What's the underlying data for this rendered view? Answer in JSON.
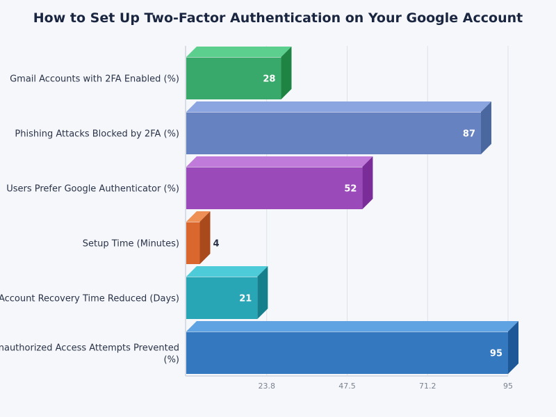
{
  "chart_data": {
    "type": "bar",
    "orientation": "horizontal",
    "style": "3d",
    "title": "How to Set Up Two-Factor Authentication on Your Google Account",
    "categories": [
      "Gmail Accounts with 2FA Enabled (%)",
      "Phishing Attacks Blocked by 2FA (%)",
      "Users Prefer Google Authenticator (%)",
      "Setup Time (Minutes)",
      "Account Recovery Time Reduced (Days)",
      "Unauthorized Access Attempts Prevented (%)"
    ],
    "values": [
      28,
      87,
      52,
      4,
      21,
      95
    ],
    "data_labels": [
      "28",
      "87",
      "52",
      "4",
      "21",
      "95"
    ],
    "colors": [
      {
        "front": "#38a96a",
        "top": "#5ccf8e",
        "side": "#1f8443"
      },
      {
        "front": "#6682c0",
        "top": "#8aa5e0",
        "side": "#4a67a0"
      },
      {
        "front": "#9a4bb9",
        "top": "#c07ad9",
        "side": "#7a2d98"
      },
      {
        "front": "#d9672e",
        "top": "#ee8f55",
        "side": "#a84a1c"
      },
      {
        "front": "#28a6b5",
        "top": "#4ecbd8",
        "side": "#157f8b"
      },
      {
        "front": "#3479c0",
        "top": "#60a3e3",
        "side": "#1f5896"
      }
    ],
    "xlim": [
      0,
      95
    ],
    "xticks": [
      "23.8",
      "47.5",
      "71.2",
      "95"
    ],
    "xtick_values": [
      23.75,
      47.5,
      71.25,
      95
    ],
    "xlabel": "",
    "ylabel": "",
    "grid": "vertical",
    "legend": "none"
  }
}
